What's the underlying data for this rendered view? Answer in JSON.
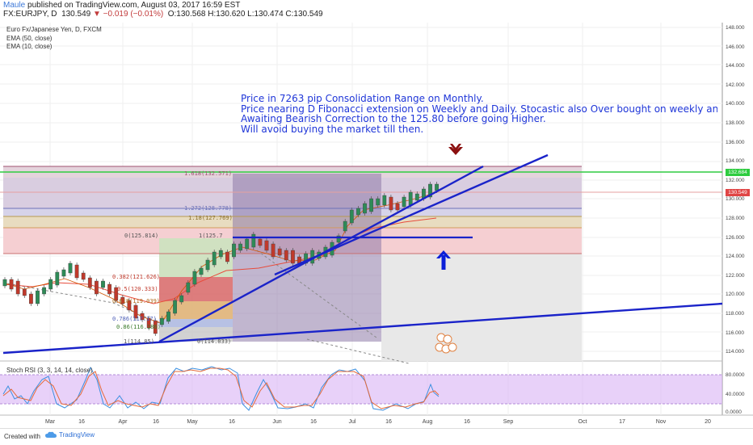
{
  "header": {
    "author": "Maule",
    "published_text": "published on TradingView.com, August 03, 2017 16:59 EST",
    "symbol": "FX:EURJPY, D",
    "price": "130.549",
    "change": "▼ −0.019 (−0.01%)",
    "ohlc": "O:130.568 H:130.620 L:130.474 C:130.549"
  },
  "overlays": {
    "instrument": "Euro Fx/Japanese Yen, D, FXCM",
    "ema1": "EMA (50, close)",
    "ema2": "EMA (10, close)"
  },
  "annotation": {
    "line1": "Price in 7263 pip Consolidation Range on Monthly.",
    "line2": "Price nearing D Fibonacci extension on Weekly and Daily. Stocastic also Over bought on weekly and monthly.",
    "line3": "Awaiting Bearish Correction to the 125.80 before going Higher.",
    "line4": "Will avoid buying the market till then."
  },
  "fib_labels": {
    "f1618": "1.618(132.571)",
    "f1272": "1.272(128.778)",
    "f118": "1.18(127.769)",
    "f0": "0(125.814)",
    "f1b": "1(125.7",
    "f0382": "0.382(121.626)",
    "f05": "0.5(120.333)",
    "f0618": "0.618(119.039)",
    "f0786": "0.786(117.17)",
    "f086": "0.86(116.186)",
    "f1": "1(114.85)",
    "f0b": "0(114.833)"
  },
  "price_axis": [
    "148.000",
    "146.000",
    "144.000",
    "142.000",
    "140.000",
    "138.000",
    "136.000",
    "134.000",
    "132.000",
    "130.000",
    "128.000",
    "126.000",
    "124.000",
    "122.000",
    "120.000",
    "118.000",
    "116.000",
    "114.000"
  ],
  "price_tags": {
    "green": {
      "label": "132.684",
      "color": "#2ecc40"
    },
    "red": {
      "label": "130.549",
      "color": "#e04545"
    }
  },
  "rsi": {
    "label": "Stoch RSI (3, 3, 14, 14, close)",
    "axis": [
      "80.0000",
      "40.0000",
      "0.0000"
    ],
    "fast_color": "#3b8fe0",
    "slow_color": "#e56a3a",
    "band_color": "#d9b3f5"
  },
  "x_axis": [
    "Mar",
    "16",
    "Apr",
    "16",
    "May",
    "16",
    "Jun",
    "16",
    "Jul",
    "16",
    "Aug",
    "16",
    "Sep",
    "Oct",
    "17",
    "Nov",
    "20"
  ],
  "footer": {
    "created_with": "Created with",
    "brand": "TradingView"
  },
  "colors": {
    "trend_line": "#1a23c9",
    "ema_fast": "#e74c3c",
    "ema_slow": "#d35400",
    "green_level": "#2ecc40",
    "arrow_down": "#8b1010",
    "arrow_up": "#0b1fd8"
  }
}
